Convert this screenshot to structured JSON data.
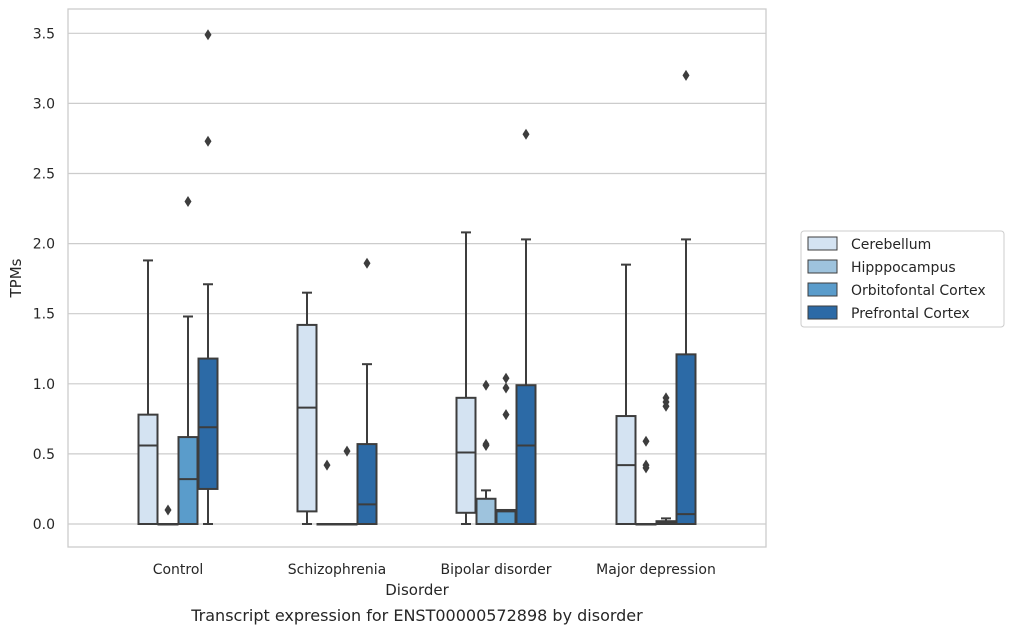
{
  "chart_data": {
    "type": "box",
    "caption": "Transcript expression for ENST00000572898 by disorder",
    "xlabel": "Disorder",
    "ylabel": "TPMs",
    "ylim": [
      -0.17,
      3.67
    ],
    "yticks": [
      "0.0",
      "0.5",
      "1.0",
      "1.5",
      "2.0",
      "2.5",
      "3.0",
      "3.5"
    ],
    "grid": "horizontal",
    "legend_position": "right",
    "categories": [
      "Control",
      "Schizophrenia",
      "Bipolar disorder",
      "Major depression"
    ],
    "series": [
      {
        "name": "Cerebellum",
        "color": "#d4e3f2",
        "boxes": [
          {
            "whislo": 0.0,
            "q1": 0.0,
            "med": 0.56,
            "q3": 0.78,
            "whishi": 1.88,
            "fliers": []
          },
          {
            "whislo": 0.0,
            "q1": 0.09,
            "med": 0.83,
            "q3": 1.42,
            "whishi": 1.65,
            "fliers": []
          },
          {
            "whislo": 0.0,
            "q1": 0.08,
            "med": 0.51,
            "q3": 0.9,
            "whishi": 2.08,
            "fliers": []
          },
          {
            "whislo": 0.0,
            "q1": 0.0,
            "med": 0.42,
            "q3": 0.77,
            "whishi": 1.85,
            "fliers": []
          }
        ]
      },
      {
        "name": "Hipppocampus",
        "color": "#9ec3dd",
        "boxes": [
          {
            "whislo": 0.0,
            "q1": 0.0,
            "med": 0.0,
            "q3": 0.0,
            "whishi": 0.0,
            "fliers": [
              0.1
            ]
          },
          {
            "whislo": 0.0,
            "q1": 0.0,
            "med": 0.0,
            "q3": 0.0,
            "whishi": 0.0,
            "fliers": [
              0.42
            ]
          },
          {
            "whislo": 0.0,
            "q1": 0.0,
            "med": 0.0,
            "q3": 0.18,
            "whishi": 0.24,
            "fliers": [
              0.56,
              0.57,
              0.99
            ]
          },
          {
            "whislo": 0.0,
            "q1": 0.0,
            "med": 0.0,
            "q3": 0.0,
            "whishi": 0.0,
            "fliers": [
              0.4,
              0.42,
              0.59
            ]
          }
        ]
      },
      {
        "name": "Orbitofontal Cortex",
        "color": "#5a9ccb",
        "boxes": [
          {
            "whislo": 0.0,
            "q1": 0.0,
            "med": 0.32,
            "q3": 0.62,
            "whishi": 1.48,
            "fliers": [
              2.3
            ]
          },
          {
            "whislo": 0.0,
            "q1": 0.0,
            "med": 0.0,
            "q3": 0.0,
            "whishi": 0.0,
            "fliers": [
              0.52
            ]
          },
          {
            "whislo": 0.0,
            "q1": 0.0,
            "med": 0.09,
            "q3": 0.1,
            "whishi": 0.1,
            "fliers": [
              0.78,
              0.97,
              1.04
            ]
          },
          {
            "whislo": 0.0,
            "q1": 0.0,
            "med": 0.01,
            "q3": 0.02,
            "whishi": 0.04,
            "fliers": [
              0.84,
              0.87,
              0.9
            ]
          }
        ]
      },
      {
        "name": "Prefrontal Cortex",
        "color": "#2c6aa6",
        "boxes": [
          {
            "whislo": 0.0,
            "q1": 0.25,
            "med": 0.69,
            "q3": 1.18,
            "whishi": 1.71,
            "fliers": [
              2.73,
              3.49
            ]
          },
          {
            "whislo": 0.0,
            "q1": 0.0,
            "med": 0.14,
            "q3": 0.57,
            "whishi": 1.14,
            "fliers": [
              1.86
            ]
          },
          {
            "whislo": 0.0,
            "q1": 0.0,
            "med": 0.56,
            "q3": 0.99,
            "whishi": 2.03,
            "fliers": [
              2.78
            ]
          },
          {
            "whislo": 0.0,
            "q1": 0.0,
            "med": 0.07,
            "q3": 1.21,
            "whishi": 2.03,
            "fliers": [
              3.2
            ]
          }
        ]
      }
    ]
  }
}
